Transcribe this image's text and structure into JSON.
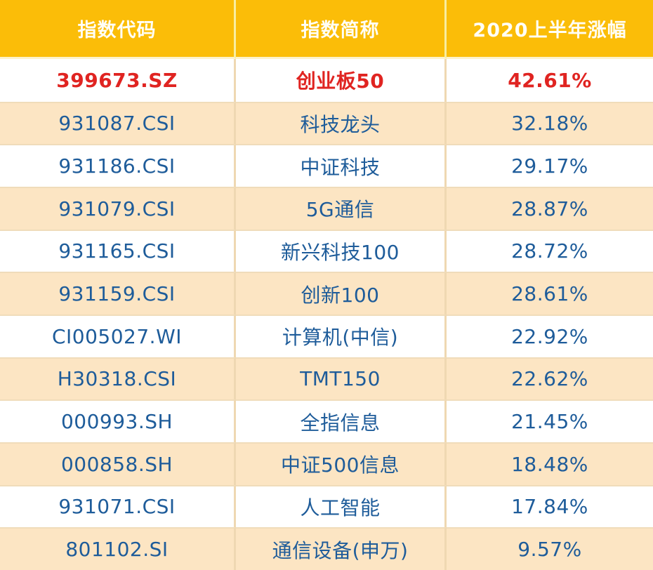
{
  "table": {
    "headers": [
      "指数代码",
      "指数简称",
      "2020上半年涨幅"
    ],
    "highlight_row_index": 0,
    "rows": [
      {
        "code": "399673.SZ",
        "name": "创业板50",
        "change": "42.61%"
      },
      {
        "code": "931087.CSI",
        "name": "科技龙头",
        "change": "32.18%"
      },
      {
        "code": "931186.CSI",
        "name": "中证科技",
        "change": "29.17%"
      },
      {
        "code": "931079.CSI",
        "name": "5G通信",
        "change": "28.87%"
      },
      {
        "code": "931165.CSI",
        "name": "新兴科技100",
        "change": "28.72%"
      },
      {
        "code": "931159.CSI",
        "name": "创新100",
        "change": "28.61%"
      },
      {
        "code": "CI005027.WI",
        "name": "计算机(中信)",
        "change": "22.92%"
      },
      {
        "code": "H30318.CSI",
        "name": "TMT150",
        "change": "22.62%"
      },
      {
        "code": "000993.SH",
        "name": "全指信息",
        "change": "21.45%"
      },
      {
        "code": "000858.SH",
        "name": "中证500信息",
        "change": "18.48%"
      },
      {
        "code": "931071.CSI",
        "name": "人工智能",
        "change": "17.84%"
      },
      {
        "code": "801102.SI",
        "name": "通信设备(申万)",
        "change": "9.57%"
      }
    ]
  },
  "colors": {
    "header_bg": "#FBBD08",
    "header_text": "#FFFEF6",
    "header_divider": "#F8EDA0",
    "row_bg": "#FFFFFF",
    "row_alt_bg": "#FCE5C3",
    "divider": "#EFD8B2",
    "text_blue": "#1E5C9A",
    "text_red": "#E02421"
  },
  "chart_data": {
    "type": "table",
    "columns": [
      "指数代码",
      "指数简称",
      "2020上半年涨幅"
    ],
    "rows": [
      [
        "399673.SZ",
        "创业板50",
        "42.61%"
      ],
      [
        "931087.CSI",
        "科技龙头",
        "32.18%"
      ],
      [
        "931186.CSI",
        "中证科技",
        "29.17%"
      ],
      [
        "931079.CSI",
        "5G通信",
        "28.87%"
      ],
      [
        "931165.CSI",
        "新兴科技100",
        "28.72%"
      ],
      [
        "931159.CSI",
        "创新100",
        "28.61%"
      ],
      [
        "CI005027.WI",
        "计算机(中信)",
        "22.92%"
      ],
      [
        "H30318.CSI",
        "TMT150",
        "22.62%"
      ],
      [
        "000993.SH",
        "全指信息",
        "21.45%"
      ],
      [
        "000858.SH",
        "中证500信息",
        "18.48%"
      ],
      [
        "931071.CSI",
        "人工智能",
        "17.84%"
      ],
      [
        "801102.SI",
        "通信设备(申万)",
        "9.57%"
      ]
    ],
    "values_numeric_pct": [
      42.61,
      32.18,
      29.17,
      28.87,
      28.72,
      28.61,
      22.92,
      22.62,
      21.45,
      18.48,
      17.84,
      9.57
    ],
    "highlight_row": 0,
    "notes_layout": "header gold row, body rows alternate white/peach, first data row red"
  }
}
